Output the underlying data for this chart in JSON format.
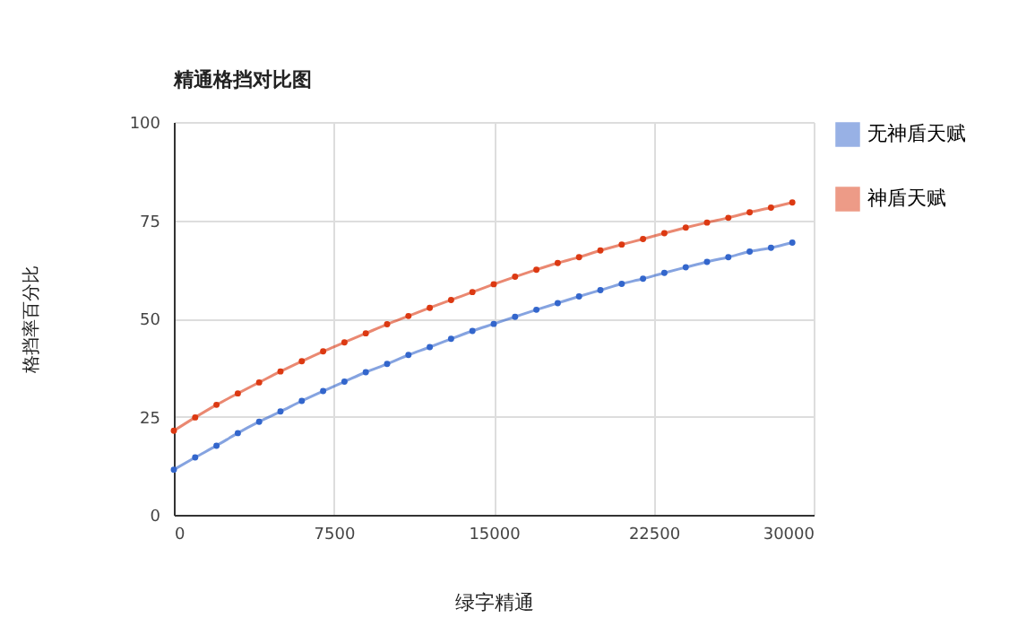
{
  "chart_data": {
    "type": "line",
    "title": "精通格挡对比图",
    "xlabel": "绿字精通",
    "ylabel": "格挡率百分比",
    "x": [
      0,
      1000,
      2000,
      3000,
      4000,
      5000,
      6000,
      7000,
      8000,
      9000,
      10000,
      11000,
      12000,
      13000,
      14000,
      15000,
      16000,
      17000,
      18000,
      19000,
      20000,
      21000,
      22000,
      23000,
      24000,
      25000,
      26000,
      27000,
      28000,
      29000
    ],
    "series": [
      {
        "name": "无神盾天赋",
        "color": "#3366cc",
        "values": [
          11.5,
          14.6,
          17.6,
          20.8,
          23.7,
          26.3,
          29.0,
          31.5,
          33.9,
          36.3,
          38.4,
          40.7,
          42.7,
          44.8,
          46.8,
          48.6,
          50.4,
          52.2,
          53.9,
          55.6,
          57.2,
          58.8,
          60.1,
          61.6,
          63.0,
          64.4,
          65.6,
          67.0,
          68.0,
          69.3
        ]
      },
      {
        "name": "神盾天赋",
        "color": "#dc3912",
        "values": [
          21.4,
          24.8,
          28.0,
          30.9,
          33.7,
          36.5,
          39.1,
          41.6,
          43.9,
          46.2,
          48.5,
          50.6,
          52.7,
          54.7,
          56.7,
          58.7,
          60.6,
          62.4,
          64.1,
          65.6,
          67.3,
          68.8,
          70.2,
          71.7,
          73.1,
          74.4,
          75.6,
          77.0,
          78.2,
          79.5
        ]
      }
    ],
    "xlim": [
      0,
      30000
    ],
    "xticks": [
      0,
      7500,
      15000,
      22500,
      30000
    ],
    "ylim": [
      0,
      100
    ],
    "yticks": [
      0,
      25,
      50,
      75,
      100
    ],
    "grid": true,
    "legend": "right",
    "marker": "circle",
    "line_style": "solid"
  }
}
